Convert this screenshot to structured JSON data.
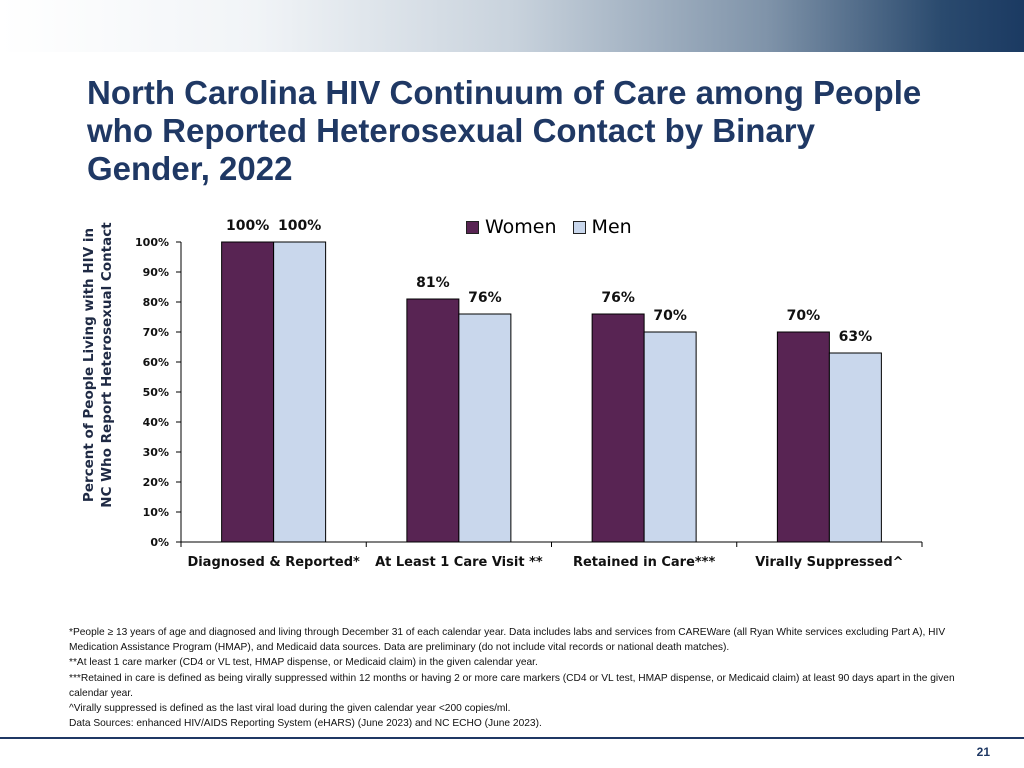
{
  "slide": {
    "title": "North Carolina HIV Continuum of Care among People who Reported Heterosexual Contact by Binary Gender, 2022",
    "page_number": "21",
    "colors": {
      "women": "#582453",
      "men": "#c9d7ec",
      "title": "#1f3864"
    },
    "footnotes": [
      "*People ≥ 13 years of age and diagnosed and living through December 31 of each calendar year. Data includes labs and services from CAREWare (all Ryan White services excluding Part A), HIV Medication Assistance Program (HMAP), and Medicaid data sources. Data are preliminary (do not include vital records or national death matches).",
      "**At least 1 care marker (CD4 or VL test, HMAP dispense, or Medicaid claim) in the given calendar year.",
      "***Retained in care is defined as being virally suppressed within 12 months or having 2 or more care markers (CD4 or VL test, HMAP dispense, or Medicaid claim) at least 90 days apart in the given calendar year.",
      "^Virally suppressed is defined as the last viral load during the given calendar year <200 copies/ml.",
      "Data Sources: enhanced HIV/AIDS Reporting System (eHARS) (June 2023) and NC ECHO (June 2023)."
    ]
  },
  "chart_data": {
    "type": "bar",
    "title": "North Carolina HIV Continuum of Care among People who Reported Heterosexual Contact by Binary Gender, 2022",
    "categories": [
      "Diagnosed & Reported*",
      "At Least 1 Care Visit **",
      "Retained in Care***",
      "Virally Suppressed^"
    ],
    "series": [
      {
        "name": "Women",
        "values": [
          100,
          81,
          76,
          70
        ],
        "labels": [
          "100%",
          "81%",
          "76%",
          "70%"
        ],
        "color": "#582453"
      },
      {
        "name": "Men",
        "values": [
          100,
          76,
          70,
          63
        ],
        "labels": [
          "100%",
          "76%",
          "70%",
          "63%"
        ],
        "color": "#c9d7ec"
      }
    ],
    "xlabel": "",
    "ylabel": "Percent of People Living with HIV in NC Who Report Heterosexual Contact",
    "ylim": [
      0,
      100
    ],
    "yticks": [
      "0%",
      "10%",
      "20%",
      "30%",
      "40%",
      "50%",
      "60%",
      "70%",
      "80%",
      "90%",
      "100%"
    ],
    "grid": false,
    "legend": "top-center"
  }
}
